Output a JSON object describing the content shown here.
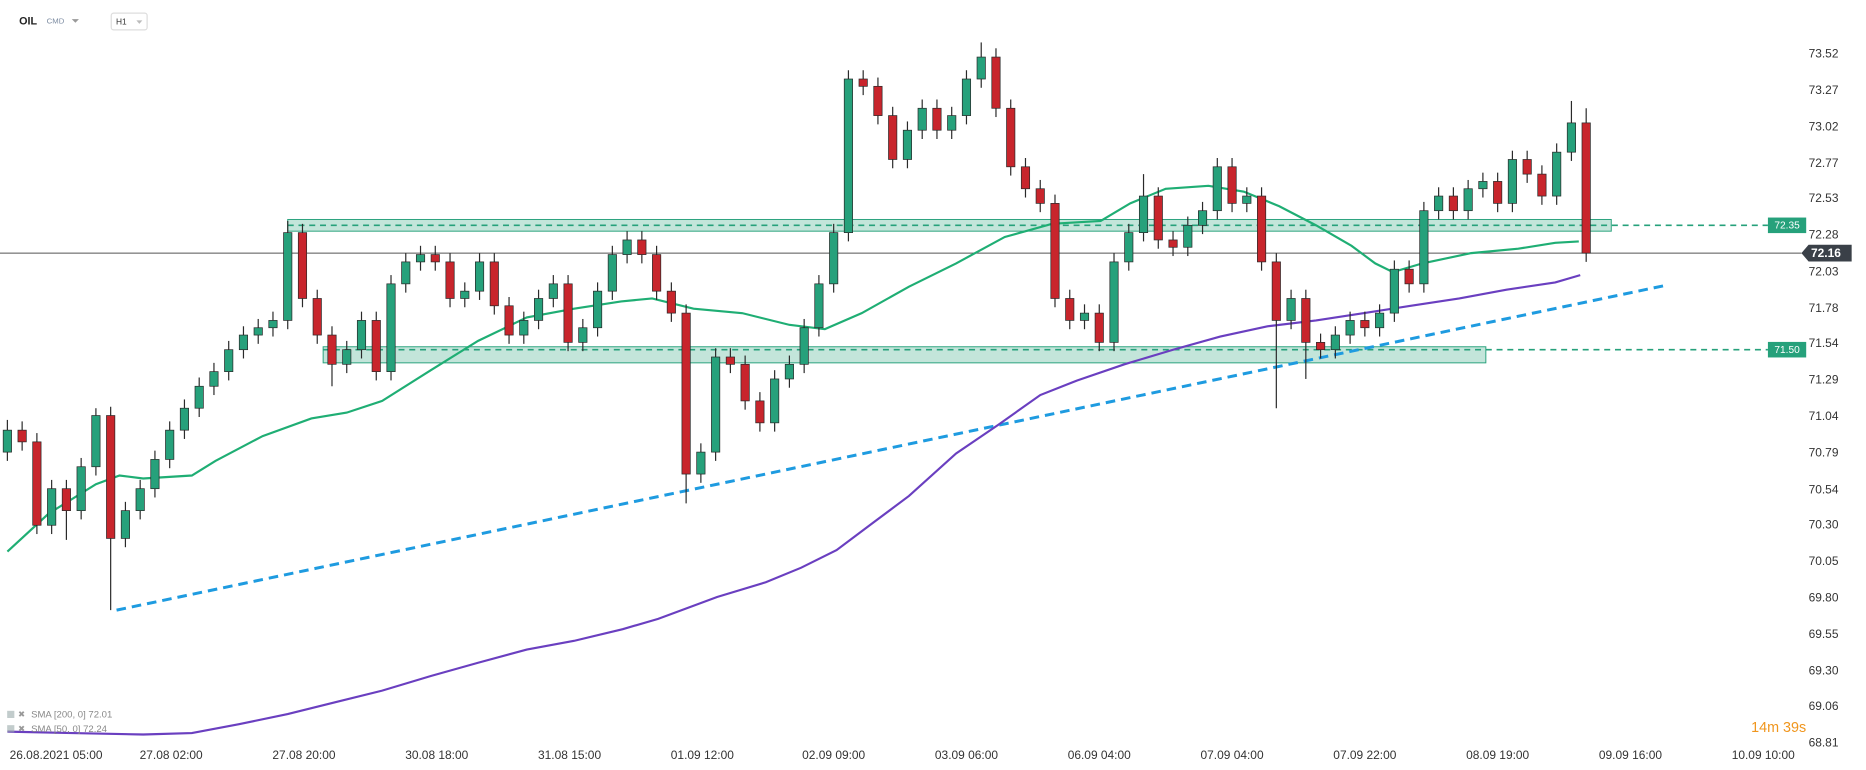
{
  "chart_data": {
    "type": "candlestick",
    "symbol": "OIL",
    "market": "CMD",
    "interval": "H1",
    "timer": "14m 39s",
    "up_color": "#26a17b",
    "down_color": "#c8252c",
    "xlim": [
      -0.5,
      121.1
    ],
    "ylim": [
      68.66,
      73.89
    ],
    "yticks": [
      73.52,
      73.27,
      73.02,
      72.77,
      72.53,
      72.28,
      72.03,
      71.78,
      71.54,
      71.29,
      71.04,
      70.79,
      70.54,
      {
        "value": 70.3,
        "label": "70.30"
      },
      70.05,
      {
        "value": 69.8,
        "label": "69.80"
      },
      69.55,
      {
        "value": 69.3,
        "label": "69.30"
      },
      69.06,
      68.81
    ],
    "xticks": [
      {
        "value": 3.3,
        "label": "26.08.2021 05:00"
      },
      {
        "value": 11.1,
        "label": "27.08 02:00"
      },
      {
        "value": 20.1,
        "label": "27.08 20:00"
      },
      {
        "value": 29.1,
        "label": "30.08 18:00"
      },
      {
        "value": 38.1,
        "label": "31.08 15:00"
      },
      {
        "value": 47.1,
        "label": "01.09 12:00"
      },
      {
        "value": 56.0,
        "label": "02.09 09:00"
      },
      {
        "value": 65.0,
        "label": "03.09 06:00"
      },
      {
        "value": 74.0,
        "label": "06.09 04:00"
      },
      {
        "value": 83.0,
        "label": "07.09 04:00"
      },
      {
        "value": 92.0,
        "label": "07.09 22:00"
      },
      {
        "value": 101.0,
        "label": "08.09 19:00"
      },
      {
        "value": 110.0,
        "label": "09.09 16:00"
      },
      {
        "value": 119.0,
        "label": "10.09 10:00"
      }
    ],
    "candles": [
      [
        70.8,
        71.02,
        70.74,
        70.95
      ],
      [
        70.95,
        71.01,
        70.81,
        70.87
      ],
      [
        70.87,
        70.93,
        70.24,
        70.3
      ],
      [
        70.3,
        70.61,
        70.24,
        70.55
      ],
      [
        70.55,
        70.61,
        70.2,
        70.4
      ],
      [
        70.4,
        70.76,
        70.34,
        70.7
      ],
      [
        70.7,
        71.1,
        70.64,
        71.05
      ],
      [
        71.05,
        71.11,
        69.72,
        70.21
      ],
      [
        70.21,
        70.46,
        70.15,
        70.4
      ],
      [
        70.4,
        70.61,
        70.34,
        70.55
      ],
      [
        70.55,
        70.81,
        70.49,
        70.75
      ],
      [
        70.75,
        71.01,
        70.69,
        70.95
      ],
      [
        70.95,
        71.16,
        70.89,
        71.1
      ],
      [
        71.1,
        71.31,
        71.04,
        71.25
      ],
      [
        71.25,
        71.41,
        71.19,
        71.35
      ],
      [
        71.35,
        71.56,
        71.29,
        71.5
      ],
      [
        71.5,
        71.66,
        71.44,
        71.6
      ],
      [
        71.6,
        71.71,
        71.54,
        71.65
      ],
      [
        71.65,
        71.76,
        71.59,
        71.7
      ],
      [
        71.7,
        72.38,
        71.64,
        72.3
      ],
      [
        72.3,
        72.36,
        71.79,
        71.85
      ],
      [
        71.85,
        71.91,
        71.54,
        71.6
      ],
      [
        71.6,
        71.66,
        71.25,
        71.4
      ],
      [
        71.4,
        71.56,
        71.34,
        71.5
      ],
      [
        71.5,
        71.76,
        71.44,
        71.7
      ],
      [
        71.7,
        71.76,
        71.29,
        71.35
      ],
      [
        71.35,
        72.01,
        71.29,
        71.95
      ],
      [
        71.95,
        72.16,
        71.89,
        72.1
      ],
      [
        72.1,
        72.21,
        72.04,
        72.15
      ],
      [
        72.15,
        72.21,
        72.04,
        72.1
      ],
      [
        72.1,
        72.16,
        71.79,
        71.85
      ],
      [
        71.85,
        71.96,
        71.79,
        71.9
      ],
      [
        71.9,
        72.16,
        71.84,
        72.1
      ],
      [
        72.1,
        72.16,
        71.74,
        71.8
      ],
      [
        71.8,
        71.86,
        71.54,
        71.6
      ],
      [
        71.6,
        71.76,
        71.54,
        71.7
      ],
      [
        71.7,
        71.91,
        71.64,
        71.85
      ],
      [
        71.85,
        72.01,
        71.79,
        71.95
      ],
      [
        71.95,
        72.01,
        71.49,
        71.55
      ],
      [
        71.55,
        71.71,
        71.49,
        71.65
      ],
      [
        71.65,
        71.96,
        71.59,
        71.9
      ],
      [
        71.9,
        72.21,
        71.84,
        72.15
      ],
      [
        72.15,
        72.31,
        72.09,
        72.25
      ],
      [
        72.25,
        72.31,
        72.09,
        72.15
      ],
      [
        72.15,
        72.21,
        71.84,
        71.9
      ],
      [
        71.9,
        71.96,
        71.69,
        71.75
      ],
      [
        71.75,
        71.81,
        70.45,
        70.65
      ],
      [
        70.65,
        70.86,
        70.59,
        70.8
      ],
      [
        70.8,
        71.51,
        70.74,
        71.45
      ],
      [
        71.45,
        71.51,
        71.34,
        71.4
      ],
      [
        71.4,
        71.46,
        71.09,
        71.15
      ],
      [
        71.15,
        71.21,
        70.94,
        71.0
      ],
      [
        71.0,
        71.36,
        70.94,
        71.3
      ],
      [
        71.3,
        71.46,
        71.24,
        71.4
      ],
      [
        71.4,
        71.71,
        71.34,
        71.65
      ],
      [
        71.65,
        72.01,
        71.59,
        71.95
      ],
      [
        71.95,
        72.36,
        71.89,
        72.3
      ],
      [
        72.3,
        73.41,
        72.24,
        73.35
      ],
      [
        73.35,
        73.41,
        73.24,
        73.3
      ],
      [
        73.3,
        73.36,
        73.04,
        73.1
      ],
      [
        73.1,
        73.16,
        72.74,
        72.8
      ],
      [
        72.8,
        73.06,
        72.74,
        73.0
      ],
      [
        73.0,
        73.21,
        72.94,
        73.15
      ],
      [
        73.15,
        73.21,
        72.94,
        73.0
      ],
      [
        73.0,
        73.16,
        72.94,
        73.1
      ],
      [
        73.1,
        73.41,
        73.04,
        73.35
      ],
      [
        73.35,
        73.6,
        73.29,
        73.5
      ],
      [
        73.5,
        73.56,
        73.09,
        73.15
      ],
      [
        73.15,
        73.21,
        72.69,
        72.75
      ],
      [
        72.75,
        72.81,
        72.54,
        72.6
      ],
      [
        72.6,
        72.66,
        72.44,
        72.5
      ],
      [
        72.5,
        72.56,
        71.79,
        71.85
      ],
      [
        71.85,
        71.91,
        71.64,
        71.7
      ],
      [
        71.7,
        71.81,
        71.64,
        71.75
      ],
      [
        71.75,
        71.81,
        71.49,
        71.55
      ],
      [
        71.55,
        72.16,
        71.49,
        72.1
      ],
      [
        72.1,
        72.36,
        72.04,
        72.3
      ],
      [
        72.3,
        72.7,
        72.24,
        72.55
      ],
      [
        72.55,
        72.61,
        72.19,
        72.25
      ],
      [
        72.25,
        72.31,
        72.14,
        72.2
      ],
      [
        72.2,
        72.41,
        72.14,
        72.35
      ],
      [
        72.35,
        72.51,
        72.29,
        72.45
      ],
      [
        72.45,
        72.81,
        72.39,
        72.75
      ],
      [
        72.75,
        72.81,
        72.44,
        72.5
      ],
      [
        72.5,
        72.61,
        72.44,
        72.55
      ],
      [
        72.55,
        72.61,
        72.04,
        72.1
      ],
      [
        72.1,
        72.16,
        71.1,
        71.7
      ],
      [
        71.7,
        71.91,
        71.64,
        71.85
      ],
      [
        71.85,
        71.91,
        71.3,
        71.55
      ],
      [
        71.55,
        71.61,
        71.44,
        71.5
      ],
      [
        71.5,
        71.66,
        71.44,
        71.6
      ],
      [
        71.6,
        71.76,
        71.54,
        71.7
      ],
      [
        71.7,
        71.76,
        71.59,
        71.65
      ],
      [
        71.65,
        71.81,
        71.59,
        71.75
      ],
      [
        71.75,
        72.11,
        71.69,
        72.05
      ],
      [
        72.05,
        72.11,
        71.89,
        71.95
      ],
      [
        71.95,
        72.51,
        71.89,
        72.45
      ],
      [
        72.45,
        72.61,
        72.39,
        72.55
      ],
      [
        72.55,
        72.61,
        72.39,
        72.45
      ],
      [
        72.45,
        72.66,
        72.39,
        72.6
      ],
      [
        72.6,
        72.71,
        72.54,
        72.65
      ],
      [
        72.65,
        72.71,
        72.44,
        72.5
      ],
      [
        72.5,
        72.86,
        72.44,
        72.8
      ],
      [
        72.8,
        72.86,
        72.64,
        72.7
      ],
      [
        72.7,
        72.76,
        72.49,
        72.55
      ],
      [
        72.55,
        72.91,
        72.49,
        72.85
      ],
      [
        72.85,
        73.2,
        72.79,
        73.05
      ],
      [
        73.05,
        73.15,
        72.1,
        72.16
      ]
    ],
    "series": [
      {
        "name": "SMA [200, 0] 72.01",
        "color": "#6a3fc0",
        "x": [
          0,
          4.4,
          9.2,
          12.5,
          15.7,
          19.0,
          22.2,
          25.4,
          28.7,
          31.9,
          35.2,
          38.4,
          41.7,
          44.1,
          46.5,
          48.1,
          51.4,
          53.8,
          56.2,
          58.7,
          61.1,
          64.3,
          67.2,
          70.0,
          72.5,
          75.7,
          79.0,
          82.2,
          85.4,
          88.7,
          91.9,
          95.1,
          98.4,
          101.6,
          104.9,
          106.6
        ],
        "values": [
          68.89,
          68.88,
          68.87,
          68.88,
          68.94,
          69.01,
          69.09,
          69.17,
          69.27,
          69.36,
          69.45,
          69.51,
          69.59,
          69.66,
          69.75,
          69.81,
          69.91,
          70.01,
          70.13,
          70.32,
          70.5,
          70.79,
          70.99,
          71.19,
          71.29,
          71.4,
          71.5,
          71.59,
          71.66,
          71.7,
          71.75,
          71.8,
          71.85,
          71.91,
          71.96,
          72.01
        ]
      },
      {
        "name": "SMA [50, 0] 72.24",
        "color": "#1fae74",
        "x": [
          0,
          2.8,
          6.0,
          7.6,
          9.2,
          12.5,
          14.1,
          17.3,
          20.6,
          23.0,
          25.4,
          28.7,
          31.9,
          35.2,
          38.4,
          41.6,
          43.7,
          46.5,
          49.8,
          53.0,
          55.4,
          57.9,
          61.1,
          64.3,
          67.6,
          70.8,
          74.1,
          76.1,
          78.5,
          81.4,
          83.8,
          86.2,
          88.7,
          91.1,
          92.7,
          93.9,
          95.9,
          99.2,
          102.4,
          104.9,
          106.5
        ],
        "values": [
          70.12,
          70.38,
          70.58,
          70.64,
          70.62,
          70.64,
          70.74,
          70.91,
          71.03,
          71.07,
          71.15,
          71.36,
          71.56,
          71.72,
          71.78,
          71.83,
          71.85,
          71.78,
          71.75,
          71.67,
          71.64,
          71.75,
          71.93,
          72.09,
          72.27,
          72.36,
          72.38,
          72.5,
          72.6,
          72.62,
          72.58,
          72.48,
          72.35,
          72.21,
          72.09,
          72.03,
          72.09,
          72.16,
          72.19,
          72.23,
          72.24
        ]
      }
    ],
    "trendline": {
      "x": [
        7.4,
        112.4
      ],
      "values": [
        69.72,
        71.94
      ],
      "color": "#1e9be0"
    },
    "levels": [
      {
        "value": 72.35,
        "zone": [
          72.31,
          72.39
        ],
        "x": [
          19.0,
          108.7
        ]
      },
      {
        "value": 71.5,
        "label": "71.50",
        "zone": [
          71.41,
          71.52
        ],
        "x": [
          21.4,
          100.2
        ]
      }
    ],
    "level_color": "#26a17b",
    "current_price": 72.16
  }
}
